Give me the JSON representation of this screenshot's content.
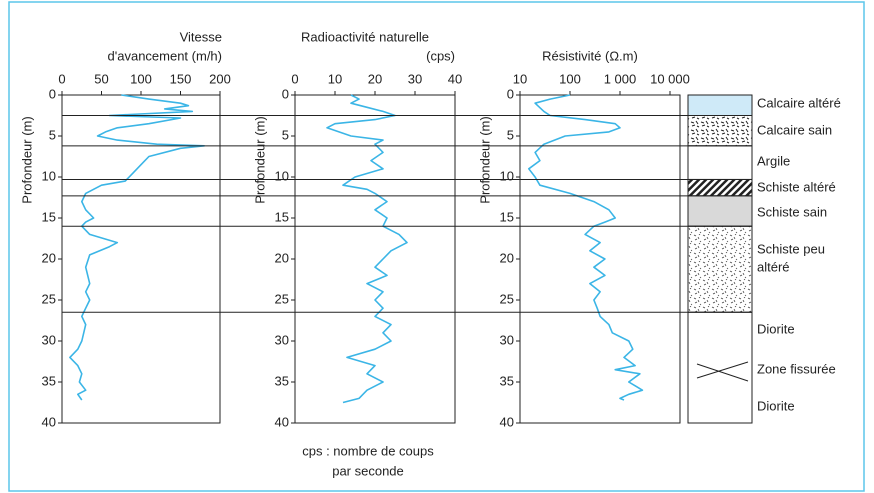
{
  "chart_data": [
    {
      "type": "line",
      "title": [
        "Vitesse",
        "d'avancement (m/h)"
      ],
      "y_label": "Profondeur (m)",
      "color": "#3bb5e6",
      "xscale": "linear",
      "xlim": [
        0,
        200
      ],
      "xticks": [
        0,
        50,
        100,
        150,
        200
      ],
      "ylim": [
        0,
        40
      ],
      "y_inverted": true,
      "yticks": [
        0,
        5,
        10,
        15,
        20,
        25,
        30,
        35,
        40
      ],
      "x": [
        75,
        110,
        150,
        160,
        130,
        165,
        60,
        150,
        110,
        70,
        55,
        45,
        70,
        120,
        180,
        150,
        110,
        100,
        90,
        80,
        50,
        30,
        25,
        30,
        40,
        30,
        25,
        35,
        70,
        60,
        35,
        30,
        35,
        30,
        35,
        30,
        25,
        30,
        25,
        20,
        10,
        20,
        25,
        22,
        30,
        20,
        25
      ],
      "y": [
        0,
        0.5,
        1,
        1.3,
        1.7,
        2,
        2.5,
        2.8,
        3.5,
        4,
        4.5,
        5,
        5.5,
        6,
        6.2,
        6.5,
        7.5,
        8.5,
        9.5,
        10.5,
        11,
        12,
        13,
        14,
        15,
        15.5,
        16,
        17,
        18,
        18.5,
        19.5,
        21,
        23,
        24,
        25,
        26,
        27,
        28,
        30,
        31,
        32,
        33,
        34,
        35,
        36,
        36.5,
        37.2
      ]
    },
    {
      "type": "line",
      "title": [
        "Radioactivité naturelle",
        "(cps)"
      ],
      "y_label": "Profondeur (m)",
      "color": "#3bb5e6",
      "xscale": "linear",
      "xlim": [
        0,
        40
      ],
      "xticks": [
        0,
        10,
        20,
        30,
        40
      ],
      "ylim": [
        0,
        40
      ],
      "y_inverted": true,
      "yticks": [
        0,
        5,
        10,
        15,
        20,
        25,
        30,
        35,
        40
      ],
      "x": [
        14,
        16,
        14,
        18,
        22,
        25,
        20,
        10,
        8,
        14,
        22,
        20,
        22,
        19,
        22,
        15,
        12,
        18,
        20,
        23,
        20,
        23,
        22,
        26,
        28,
        24,
        22,
        20,
        23,
        18,
        22,
        20,
        22,
        20,
        24,
        22,
        24,
        20,
        13,
        20,
        18,
        22,
        18,
        16,
        12
      ],
      "y": [
        0,
        0.5,
        1,
        1.5,
        2,
        2.5,
        3,
        3.5,
        4,
        5,
        5.5,
        6,
        7,
        8,
        9,
        10,
        11,
        11.5,
        12,
        13,
        14,
        15,
        16,
        17,
        18,
        19,
        20,
        21,
        22,
        23,
        24,
        25,
        26,
        27,
        28,
        29,
        30,
        31,
        32,
        33,
        34,
        35,
        36,
        37,
        37.5
      ],
      "note": [
        "cps  :  nombre de coups",
        "par seconde"
      ]
    },
    {
      "type": "line",
      "title": [
        "Résistivité (Ω.m)"
      ],
      "y_label": "Profondeur (m)",
      "color": "#3bb5e6",
      "xscale": "log",
      "xlim": [
        10,
        10000
      ],
      "xticks": [
        10,
        100,
        {
          "value": 1000,
          "label": "1 000"
        },
        {
          "value": 10000,
          "label": "10 000"
        }
      ],
      "ylim": [
        0,
        40
      ],
      "y_inverted": true,
      "yticks": [
        0,
        5,
        10,
        15,
        20,
        25,
        30,
        35,
        40
      ],
      "x": [
        100,
        40,
        20,
        30,
        40,
        200,
        800,
        1000,
        600,
        80,
        30,
        20,
        25,
        15,
        20,
        25,
        100,
        300,
        600,
        800,
        500,
        300,
        200,
        400,
        250,
        500,
        300,
        500,
        250,
        400,
        300,
        350,
        400,
        600,
        700,
        1500,
        1800,
        1200,
        2000,
        800,
        2500,
        1500,
        2800,
        1500,
        1000,
        1200
      ],
      "y": [
        0,
        0.5,
        1,
        2,
        2.5,
        3,
        3.5,
        4,
        4.5,
        5,
        6,
        7,
        8,
        9,
        10,
        11,
        12,
        13,
        14,
        15,
        15.5,
        16,
        17,
        18,
        19,
        20,
        21,
        22,
        23,
        24,
        25,
        26,
        27,
        28,
        29,
        30,
        31,
        32,
        33,
        33.5,
        34,
        35,
        36,
        36.5,
        37,
        37.2
      ]
    }
  ],
  "lithology": {
    "depths": [
      0,
      2.5,
      6.2,
      10.3,
      12.3,
      16,
      26.5,
      40
    ],
    "layers": [
      [
        "Calcaire altéré"
      ],
      [
        "Calcaire sain"
      ],
      [
        "Argile"
      ],
      [
        "Schiste altéré"
      ],
      [
        "Schiste sain"
      ],
      [
        "Schiste peu",
        "altéré"
      ],
      [
        "Diorite",
        "Zone fissurée",
        "Diorite"
      ]
    ]
  }
}
